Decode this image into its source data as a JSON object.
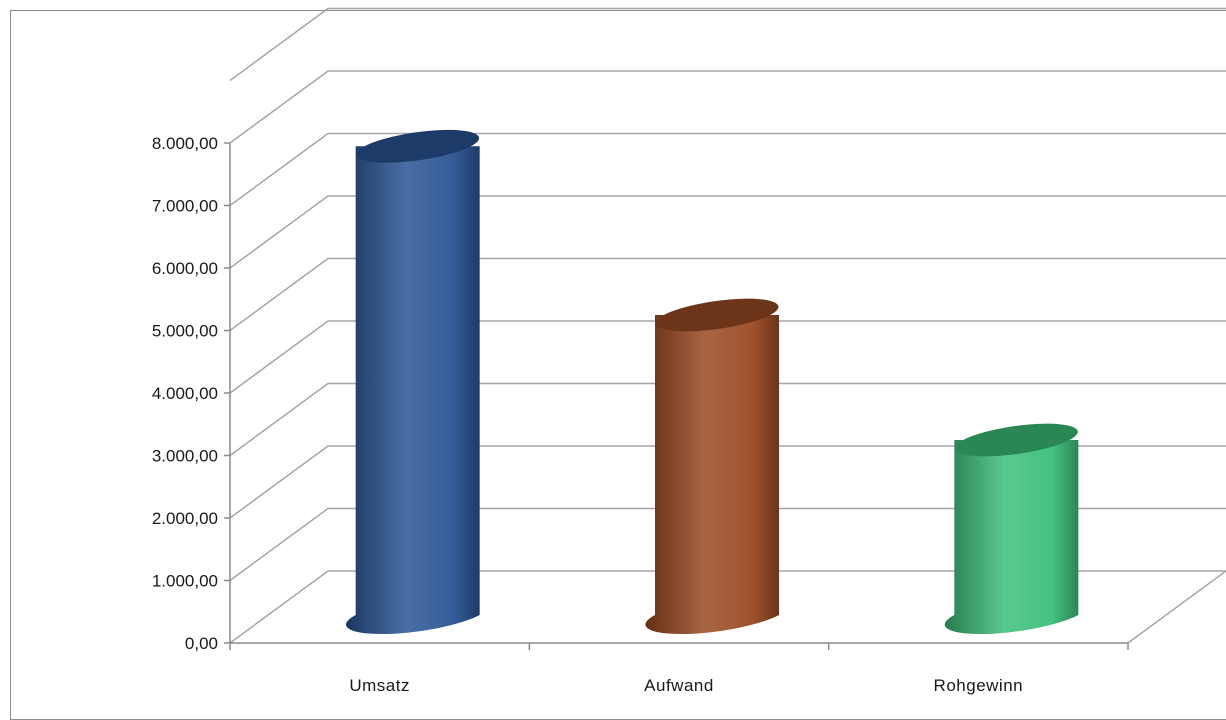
{
  "chart_data": {
    "type": "bar",
    "style": "3d-cylinder",
    "categories": [
      "Umsatz",
      "Aufwand",
      "Rohgewinn"
    ],
    "values": [
      7500,
      4800,
      2800
    ],
    "colors": [
      "#2a5494",
      "#9a4a22",
      "#3cbf7a"
    ],
    "title": "",
    "xlabel": "",
    "ylabel": "",
    "ylim": [
      0,
      8000
    ],
    "yticks": [
      "0,00",
      "1.000,00",
      "2.000,00",
      "3.000,00",
      "4.000,00",
      "5.000,00",
      "6.000,00",
      "7.000,00",
      "8.000,00"
    ],
    "grid": true,
    "legend": "none"
  }
}
